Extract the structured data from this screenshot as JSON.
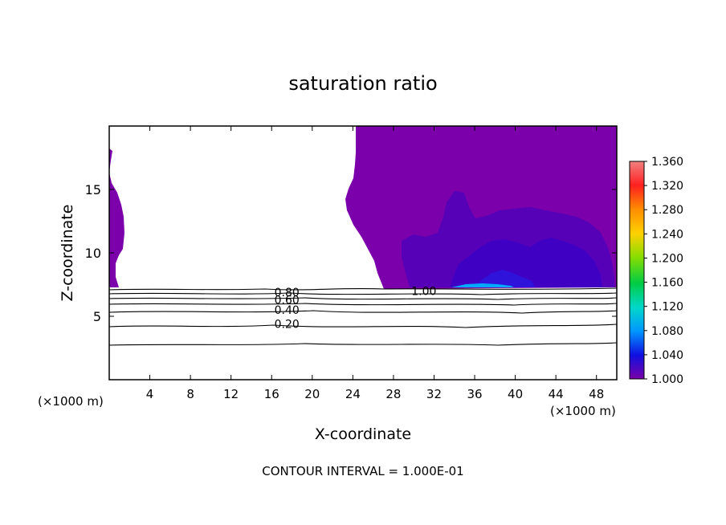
{
  "chart_data": {
    "type": "heatmap",
    "title": "saturation ratio",
    "xlabel": "X-coordinate",
    "ylabel": "Z-coordinate",
    "x_unit_left": "(×1000 m)",
    "x_unit_right": "(×1000 m)",
    "xlim": [
      0,
      50
    ],
    "ylim": [
      0,
      20
    ],
    "x_ticks": [
      "4",
      "8",
      "12",
      "16",
      "20",
      "24",
      "28",
      "32",
      "36",
      "40",
      "44",
      "48"
    ],
    "y_ticks": [
      "5",
      "10",
      "15"
    ],
    "y_tick_values": [
      5,
      10,
      15
    ],
    "x_tick_values": [
      4,
      8,
      12,
      16,
      20,
      24,
      28,
      32,
      36,
      40,
      44,
      48
    ],
    "contour_labels": [
      {
        "text": "0.20",
        "x": 17.5,
        "y": 4.4
      },
      {
        "text": "0.40",
        "x": 17.5,
        "y": 5.5
      },
      {
        "text": "0.60",
        "x": 17.5,
        "y": 6.3
      },
      {
        "text": "0.80",
        "x": 17.5,
        "y": 6.9
      },
      {
        "text": "1.00",
        "x": 31.0,
        "y": 7.0
      }
    ],
    "contour_levels_z": [
      2.8,
      4.3,
      5.2,
      5.8,
      6.3,
      6.7,
      7.1
    ],
    "colorbar": {
      "min": 1.0,
      "max": 1.36,
      "labels": [
        "1.360",
        "1.320",
        "1.280",
        "1.240",
        "1.200",
        "1.160",
        "1.120",
        "1.080",
        "1.040",
        "1.000"
      ],
      "colors": [
        "#f08080",
        "#ff2020",
        "#ff8c00",
        "#ffd000",
        "#88dd00",
        "#00cc44",
        "#00d8c8",
        "#0098ff",
        "#1010e0",
        "#7a00a8"
      ]
    },
    "fill_color": "#7b00ab"
  },
  "footer": {
    "contour_interval": "CONTOUR INTERVAL = 1.000E-01"
  }
}
